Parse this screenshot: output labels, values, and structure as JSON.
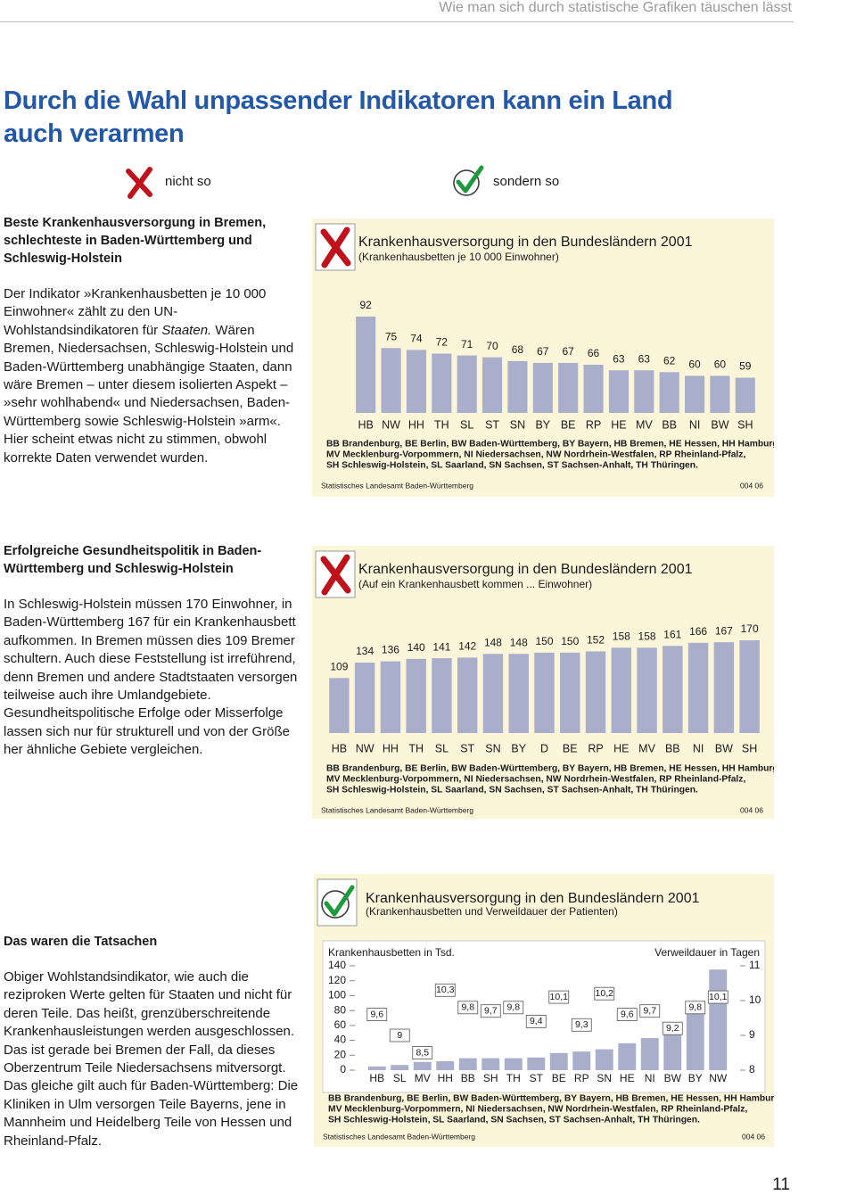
{
  "header": "Wie man sich durch statistische Grafiken täuschen lässt",
  "title": [
    "Durch die Wahl unpassender Indikatoren kann ein Land",
    "auch verarmen"
  ],
  "markers": {
    "wrong": "nicht so",
    "right": "sondern so"
  },
  "sections": [
    {
      "heading": "Beste Krankenhausversorgung in Bremen, schlechteste in Baden-Württemberg und Schleswig-Holstein",
      "body": [
        "Der Indikator »Krankenhausbetten je 10 000 Einwohner« zählt zu den UN-Wohlstandsindikatoren für ",
        "Staaten.",
        " Wären Bremen, Niedersachsen, Schleswig-Holstein und Baden-Württemberg unabhängige Staaten, dann wäre Bremen – unter diesem isolierten Aspekt – »sehr wohlhabend« und Niedersachsen, Baden-Württemberg sowie Schleswig-Holstein »arm«. Hier scheint etwas nicht zu stimmen, obwohl korrekte Daten verwendet wurden."
      ]
    },
    {
      "heading": "Erfolgreiche Gesundheitspolitik in Baden-Württemberg und Schleswig-Holstein",
      "body": [
        "In Schleswig-Holstein müssen 170 Einwohner, in Baden-Württemberg 167 für ein Krankenhausbett aufkommen. In Bremen müssen dies 109 Bremer schultern. Auch diese Feststellung ist irreführend, denn Bremen und andere Stadtstaaten versorgen teilweise auch ihre Umlandgebiete. Gesundheitspolitische Erfolge oder Misserfolge lassen sich nur für strukturell und von der Größe her ähnliche Gebiete vergleichen."
      ]
    },
    {
      "heading": "Das waren die Tatsachen",
      "body": [
        "Obiger Wohlstandsindikator, wie auch die reziproken Werte gelten für Staaten und nicht für deren Teile. Das heißt, grenzüberschreitende Krankenhausleistungen werden ausgeschlossen. Das ist gerade bei Bremen der Fall, da dieses Oberzentrum Teile Niedersachsens mitversorgt. Das gleiche gilt auch für Baden-Württemberg: Die Kliniken in Ulm versorgen Teile Bayerns, jene in Mannheim und Heidelberg Teile von Hessen und Rheinland-Pfalz."
      ]
    }
  ],
  "chart_data": [
    {
      "type": "bar",
      "title": "Krankenhausversorgung in den Bundesländern 2001",
      "subtitle": "(Krankenhausbetten je 10 000 Einwohner)",
      "categories": [
        "HB",
        "NW",
        "HH",
        "TH",
        "SL",
        "ST",
        "SN",
        "BY",
        "BE",
        "RP",
        "HE",
        "MV",
        "BB",
        "NI",
        "BW",
        "SH"
      ],
      "values": [
        92,
        75,
        74,
        72,
        71,
        70,
        68,
        67,
        67,
        66,
        63,
        63,
        62,
        60,
        60,
        59
      ],
      "color": "#a9aecb",
      "ylim": [
        40,
        92
      ],
      "footnote": [
        "BB Brandenburg, BE Berlin, BW Baden-Württemberg, BY Bayern, HB Bremen, HE Hessen, HH Hamburg,",
        "MV Mecklenburg-Vorpommern, NI Niedersachsen, NW Nordrhein-Westfalen, RP Rheinland-Pfalz,",
        "SH Schleswig-Holstein, SL Saarland, SN Sachsen, ST Sachsen-Anhalt, TH Thüringen."
      ],
      "source": "Statistisches Landesamt Baden-Württemberg",
      "code": "004 06"
    },
    {
      "type": "bar",
      "title": "Krankenhausversorgung in den Bundesländern 2001",
      "subtitle": "(Auf ein Krankenhausbett kommen ... Einwohner)",
      "categories": [
        "HB",
        "NW",
        "HH",
        "TH",
        "SL",
        "ST",
        "SN",
        "BY",
        "D",
        "BE",
        "RP",
        "HE",
        "MV",
        "BB",
        "NI",
        "BW",
        "SH"
      ],
      "values": [
        109,
        134,
        136,
        140,
        141,
        142,
        148,
        148,
        150,
        150,
        152,
        158,
        158,
        161,
        166,
        167,
        170
      ],
      "color": "#a9aecb",
      "ylim": [
        20,
        170
      ],
      "footnote": [
        "BB Brandenburg, BE Berlin, BW Baden-Württemberg, BY Bayern, HB Bremen, HE Hessen, HH Hamburg,",
        "MV Mecklenburg-Vorpommern, NI Niedersachsen, NW Nordrhein-Westfalen, RP Rheinland-Pfalz,",
        "SH Schleswig-Holstein, SL Saarland, SN Sachsen, ST Sachsen-Anhalt, TH Thüringen."
      ],
      "source": "Statistisches Landesamt Baden-Württemberg",
      "code": "004 06"
    },
    {
      "type": "combo",
      "title": "Krankenhausversorgung in den Bundesländern 2001",
      "subtitle": "(Krankenhausbetten und Verweildauer der Patienten)",
      "categories": [
        "HB",
        "SL",
        "MV",
        "HH",
        "BB",
        "SH",
        "TH",
        "ST",
        "BE",
        "RP",
        "SN",
        "HE",
        "NI",
        "BW",
        "BY",
        "NW"
      ],
      "series": [
        {
          "name": "Krankenhausbetten in Tsd.",
          "color": "#a9aecb",
          "values": [
            5,
            7,
            11,
            12,
            16,
            16,
            16,
            17,
            23,
            25,
            28,
            36,
            43,
            59,
            76,
            135
          ]
        },
        {
          "name": "Verweildauer in Tagen",
          "axis": "y2",
          "color": "#ffffff",
          "values": [
            9.6,
            9,
            8.5,
            10.3,
            9.8,
            9.7,
            9.8,
            9.4,
            10.1,
            9.3,
            10.2,
            9.6,
            9.7,
            9.2,
            9.8,
            10.1
          ],
          "value_labels": [
            "9,6",
            "9",
            "8,5",
            "10,3",
            "9,8",
            "9,7",
            "9,8",
            "9,4",
            "10,1",
            "9,3",
            "10,2",
            "9,6",
            "9,7",
            "9,2",
            "9,8",
            "10,1"
          ]
        }
      ],
      "ylim": [
        0,
        140
      ],
      "yticks": [
        0,
        20,
        40,
        60,
        80,
        100,
        120,
        140
      ],
      "y2lim": [
        8,
        11
      ],
      "y2ticks": [
        8,
        9,
        10,
        11
      ],
      "footnote": [
        "BB Brandenburg, BE Berlin, BW Baden-Württemberg, BY Bayern, HB Bremen, HE Hessen, HH Hamburg,",
        "MV Mecklenburg-Vorpommern, NI Niedersachsen, NW Nordrhein-Westfalen, RP Rheinland-Pfalz,",
        "SH Schleswig-Holstein, SL Saarland, SN Sachsen, ST Sachsen-Anhalt, TH Thüringen."
      ],
      "source": "Statistisches Landesamt Baden-Württemberg",
      "code": "004 06"
    }
  ],
  "page_number": "11"
}
